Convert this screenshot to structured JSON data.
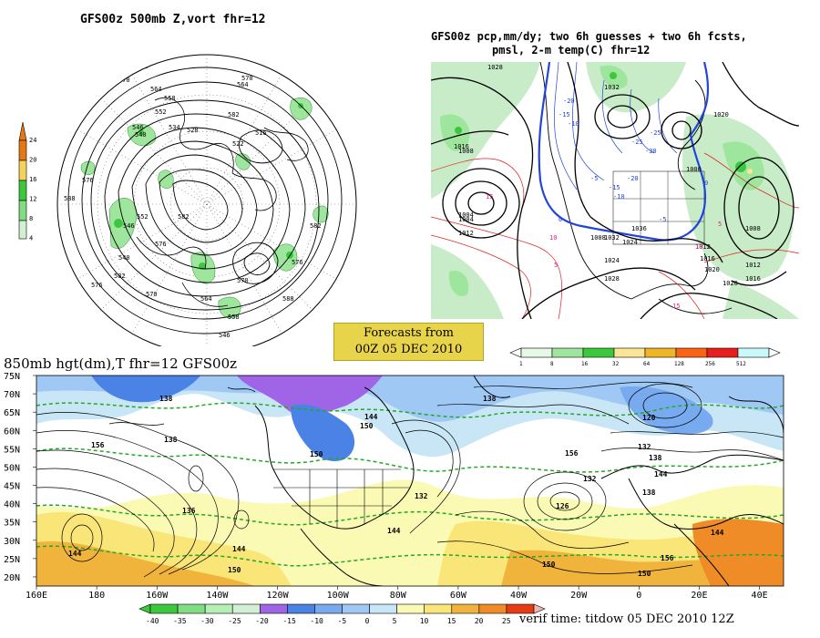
{
  "panels": {
    "vort": {
      "title": "GFS00z  500mb Z,vort    fhr=12",
      "scale_ticks": [
        "24",
        "20",
        "16",
        "12",
        "8",
        "4"
      ],
      "contour_labels": [
        "576",
        "570",
        "564",
        "558",
        "552",
        "546",
        "540",
        "534",
        "528",
        "522",
        "516",
        "570",
        "564",
        "582",
        "576",
        "588",
        "582",
        "576",
        "552",
        "546",
        "540",
        "582",
        "576",
        "570",
        "564",
        "558",
        "570",
        "576",
        "582",
        "588",
        "546"
      ]
    },
    "precip": {
      "title_line1": "GFS00z pcp,mm/dy; two 6h guesses + two 6h fcsts,",
      "title_line2": "pmsl, 2-m temp(C)  fhr=12",
      "scale_ticks": [
        "1",
        "8",
        "16",
        "32",
        "64",
        "128",
        "256",
        "512"
      ],
      "colors": [
        "#e6f8e6",
        "#9ee69e",
        "#3cc83c",
        "#fae696",
        "#f0b428",
        "#fa6414",
        "#e61e1e",
        "#c8fafa"
      ],
      "contour_labels": [
        "1028",
        "1032",
        "1020",
        "1016",
        "1008",
        "1004",
        "1000",
        "1012",
        "1024",
        "1036",
        "1004",
        "1008",
        "1012",
        "1016",
        "1020",
        "1024",
        "1028",
        "1032",
        "1008",
        "1012",
        "1016",
        "1020"
      ],
      "temp_labels": [
        "-10",
        "-15",
        "-20",
        "-25",
        "-30",
        "-5",
        "0",
        "5",
        "10",
        "15",
        "-10",
        "-15",
        "-20",
        "-25",
        "-5",
        "0",
        "5",
        "10",
        "15"
      ]
    },
    "forecast_box": {
      "line1": "Forecasts from",
      "line2": "00Z 05 DEC 2010"
    },
    "hgt850": {
      "title": "850mb hgt(dm),T  fhr=12 GFS00z",
      "lat_labels": [
        "75N",
        "70N",
        "65N",
        "60N",
        "55N",
        "50N",
        "45N",
        "40N",
        "35N",
        "30N",
        "25N",
        "20N"
      ],
      "lon_labels": [
        "160E",
        "180",
        "160W",
        "140W",
        "120W",
        "100W",
        "80W",
        "60W",
        "40W",
        "20W",
        "0",
        "20E",
        "40E"
      ],
      "contour_labels": [
        "138",
        "138",
        "144",
        "150",
        "156",
        "136",
        "144",
        "150",
        "132",
        "144",
        "138",
        "126",
        "150",
        "138",
        "120",
        "132",
        "138",
        "144",
        "144",
        "150",
        "156",
        "150",
        "132",
        "156",
        "144"
      ],
      "temp_scale_ticks": [
        "-40",
        "-35",
        "-30",
        "-25",
        "-20",
        "-15",
        "-10",
        "-5",
        "0",
        "5",
        "10",
        "15",
        "20",
        "25"
      ],
      "temp_scale_colors": [
        "#3cc83c",
        "#82dc82",
        "#b4f0b4",
        "#d2f0d2",
        "#a064e6",
        "#4a82e6",
        "#78aaf0",
        "#a0c8f5",
        "#c8e6f5",
        "#fafab4",
        "#fae678",
        "#f0b43c",
        "#f08c28",
        "#e63c14"
      ],
      "verif_time": "verif time: titdow 05 DEC 2010 12Z"
    }
  }
}
